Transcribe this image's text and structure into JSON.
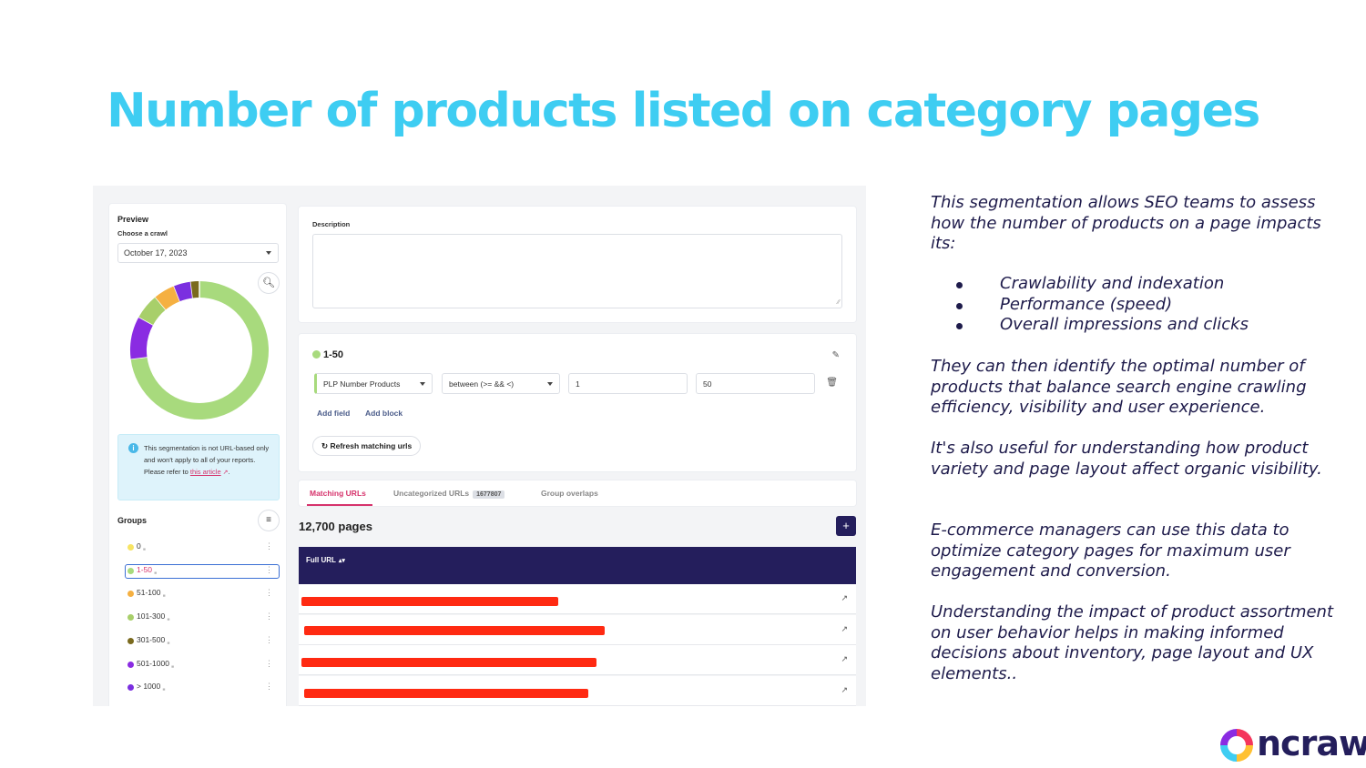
{
  "title": "Number of products listed on category pages",
  "screenshot": {
    "preview": {
      "heading": "Preview",
      "choose_label": "Choose a crawl",
      "crawl_date": "October 17, 2023",
      "donut_segments": [
        {
          "name": "1-50",
          "color": "#a8da7d",
          "fraction": 0.73
        },
        {
          "name": "501-1000",
          "color": "#8a2be2",
          "fraction": 0.1
        },
        {
          "name": "101-300",
          "color": "#a8cf6a",
          "fraction": 0.06
        },
        {
          "name": "51-100",
          "color": "#f5b041",
          "fraction": 0.05
        },
        {
          "name": "> 1000",
          "color": "#7b2fe0",
          "fraction": 0.04
        },
        {
          "name": "301-500",
          "color": "#7a6a1e",
          "fraction": 0.02
        }
      ],
      "info_text": "This segmentation is not URL-based only and won't apply to all of your reports. Please refer to",
      "info_link": "this article",
      "info_end": "."
    },
    "groups": {
      "title": "Groups",
      "items": [
        {
          "label": "0",
          "color": "#f7e463"
        },
        {
          "label": "1-50",
          "color": "#a8da7d"
        },
        {
          "label": "51-100",
          "color": "#f5b041"
        },
        {
          "label": "101-300",
          "color": "#a8cf6a"
        },
        {
          "label": "301-500",
          "color": "#7a6a1e"
        },
        {
          "label": "501-1000",
          "color": "#8a2be2"
        },
        {
          "label": "> 1000",
          "color": "#7b2fe0"
        }
      ]
    },
    "description_label": "Description",
    "rule": {
      "name": "1-50",
      "field": "PLP Number Products",
      "operator": "between (>= && <)",
      "min": "1",
      "max": "50",
      "add_field": "Add field",
      "add_block": "Add block",
      "refresh": "Refresh matching urls"
    },
    "tabs": {
      "matching": "Matching URLs",
      "uncategorized": "Uncategorized URLs",
      "uncategorized_count": "1677807",
      "overlaps": "Group overlaps"
    },
    "pages_count": "12,700 pages",
    "table_header": "Full URL",
    "url_rows": [
      {
        "redaction_fraction": 0.46
      },
      {
        "redaction_fraction": 0.54
      },
      {
        "redaction_fraction": 0.53
      },
      {
        "redaction_fraction": 0.51
      }
    ]
  },
  "body": {
    "intro": "This segmentation allows SEO teams to assess how the number of products on a page impacts its:",
    "bullets": [
      "Crawlability and indexation",
      "Performance (speed)",
      "Overall impressions and clicks"
    ],
    "para1": "They can then identify the optimal number of products that balance search engine crawling efficiency, visibility and user experience.",
    "para2": "It's also useful for understanding how product variety and page layout affect organic visibility.",
    "para3": "E-commerce managers can use this data to optimize category pages for maximum user engagement and conversion.",
    "para4": "Understanding the impact of product assortment on user behavior helps in making informed decisions about inventory, page layout and UX elements.."
  },
  "logo": {
    "text": "ncrawl",
    "colors": [
      "#f4365c",
      "#ffc132",
      "#3ecdf2",
      "#8a2be2"
    ]
  }
}
